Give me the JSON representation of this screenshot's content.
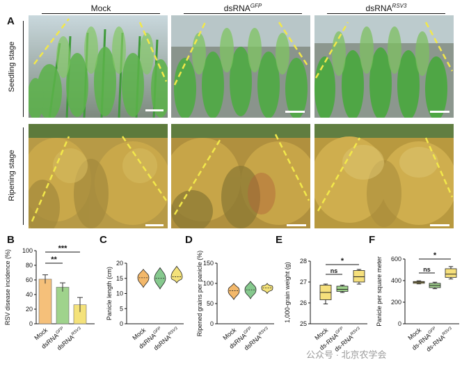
{
  "figure": {
    "panel_letters": [
      "A",
      "B",
      "C",
      "D",
      "E",
      "F"
    ],
    "columns": [
      {
        "main": "Mock",
        "sup": ""
      },
      {
        "main": "dsRNA",
        "sup": "GFP"
      },
      {
        "main": "dsRNA",
        "sup": "RSV3"
      }
    ],
    "rows": [
      "Seedling stage",
      "Ripening stage"
    ],
    "colors": {
      "mock": "#f5c07a",
      "gfp": "#9fd38c",
      "rsv3": "#f4e27a",
      "violin_gfp": "#86c98e",
      "violin_mock": "#f3b86a",
      "box_e": "#f6e07c",
      "dash": "#f2e84a"
    }
  },
  "chart_data": [
    {
      "panel": "B",
      "type": "bar",
      "ylabel": "RSV disease incidence (%)",
      "ylim": [
        0,
        100
      ],
      "yticks": [
        0,
        20,
        40,
        60,
        80,
        100
      ],
      "categories": [
        "Mock",
        "dsRNA GFP",
        "dsRNA RSV3"
      ],
      "values": [
        61,
        50,
        26
      ],
      "errors": [
        6,
        6,
        10
      ],
      "significance": [
        {
          "from": 0,
          "to": 1,
          "label": "**"
        },
        {
          "from": 0,
          "to": 2,
          "label": "***"
        }
      ]
    },
    {
      "panel": "C",
      "type": "violin",
      "ylabel": "Panicle length (cm)",
      "ylim": [
        0,
        20
      ],
      "yticks": [
        0,
        5,
        10,
        15,
        20
      ],
      "categories": [
        "Mock",
        "dsRNA GFP",
        "dsRNA RSV3"
      ],
      "values": [
        15.2,
        15.0,
        15.5
      ],
      "ranges": [
        [
          12,
          18
        ],
        [
          11.5,
          18.5
        ],
        [
          13.5,
          19
        ]
      ]
    },
    {
      "panel": "D",
      "type": "violin",
      "ylabel": "Ripened grains per panicle (%)",
      "ylim": [
        0,
        150
      ],
      "yticks": [
        0,
        50,
        100,
        150
      ],
      "categories": [
        "Mock",
        "dsRNA GFP",
        "dsRNA RSV3"
      ],
      "values": [
        82,
        84,
        89
      ],
      "ranges": [
        [
          60,
          100
        ],
        [
          62,
          105
        ],
        [
          75,
          100
        ]
      ]
    },
    {
      "panel": "E",
      "type": "box",
      "ylabel": "1,000-grain weight (g)",
      "ylim": [
        25,
        28
      ],
      "yticks": [
        25,
        26,
        27,
        28
      ],
      "categories": [
        "Mock",
        "ds-RNA GFP",
        "ds-RNA RSV3"
      ],
      "boxes": [
        {
          "min": 25.95,
          "q1": 26.15,
          "median": 26.5,
          "q3": 26.85,
          "max": 26.9
        },
        {
          "min": 26.5,
          "q1": 26.55,
          "median": 26.65,
          "q3": 26.8,
          "max": 26.85
        },
        {
          "min": 26.9,
          "q1": 27.0,
          "median": 27.25,
          "q3": 27.55,
          "max": 27.6
        }
      ],
      "significance": [
        {
          "from": 0,
          "to": 1,
          "label": "ns"
        },
        {
          "from": 0,
          "to": 2,
          "label": "*"
        }
      ]
    },
    {
      "panel": "F",
      "type": "box",
      "ylabel": "Panicle per square meter",
      "ylim": [
        0,
        600
      ],
      "yticks": [
        0,
        200,
        400,
        600
      ],
      "categories": [
        "Mock",
        "ds-RNA GFP",
        "ds-RNA RSV3"
      ],
      "boxes": [
        {
          "min": 370,
          "q1": 375,
          "median": 385,
          "q3": 392,
          "max": 398
        },
        {
          "min": 325,
          "q1": 335,
          "median": 355,
          "q3": 375,
          "max": 385
        },
        {
          "min": 415,
          "q1": 430,
          "median": 460,
          "q3": 510,
          "max": 530
        }
      ],
      "significance": [
        {
          "from": 0,
          "to": 1,
          "label": "ns"
        },
        {
          "from": 0,
          "to": 2,
          "label": "*"
        }
      ]
    }
  ],
  "watermark": "公众号 · 北京农学会"
}
